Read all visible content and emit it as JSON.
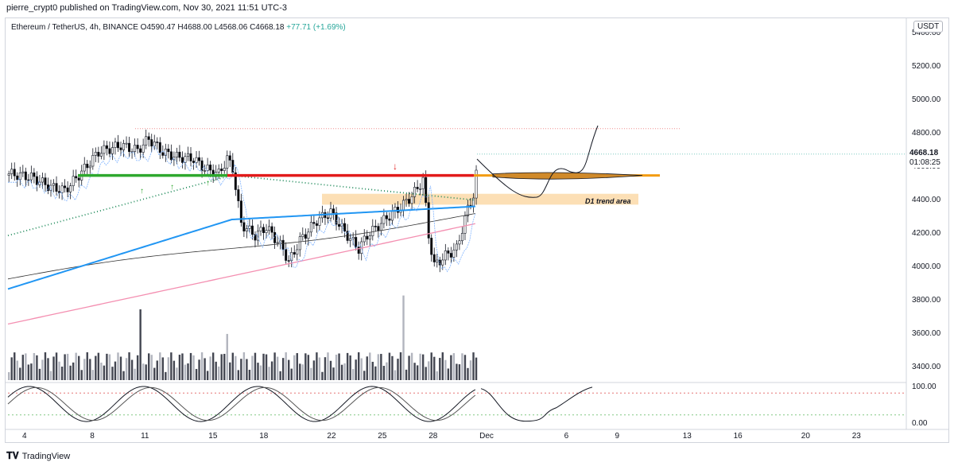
{
  "publisher": "pierre_crypt0 published on TradingView.com, Nov 30, 2021 11:51 UTC-3",
  "symbol": {
    "name": "Ethereum / TetherUS, 4h, BINANCE",
    "o_label": "O",
    "o": "4590.47",
    "h_label": "H",
    "h": "4688.00",
    "l_label": "L",
    "l": "4568.06",
    "c_label": "C",
    "c": "4668.18",
    "change": "+77.71 (+1.69%)"
  },
  "unit_badge": "USDT",
  "last_price": "4668.18",
  "countdown": "01:08:25",
  "zone_label": "D1 trend area",
  "brand": "TradingView",
  "colors": {
    "up": "#ffffff",
    "down": "#000000",
    "resistance": "#e21b1b",
    "support": "#2ea82e",
    "projection": "#f39c12",
    "ema_dotted": "#1e8a5a",
    "ma_blue": "#2196f3",
    "ma_pink": "#f48fb1",
    "ma_black": "#333333"
  },
  "chart_data": {
    "type": "line",
    "title": "",
    "xlabel": "",
    "ylabel": "",
    "y_tick_labels": [
      "5400.00",
      "5200.00",
      "5000.00",
      "4800.00",
      "4600.00",
      "4400.00",
      "4200.00",
      "4000.00",
      "3800.00",
      "3600.00",
      "3400.00"
    ],
    "x_tick_labels": [
      "4",
      "8",
      "11",
      "15",
      "18",
      "22",
      "25",
      "28",
      "Dec",
      "6",
      "9",
      "13",
      "16",
      "20",
      "23"
    ],
    "ylim": [
      3350,
      5450
    ],
    "oscillator_tick_labels": [
      "100.00",
      "0.00"
    ],
    "oscillator_ylim": [
      0,
      100
    ],
    "levels": [
      {
        "name": "prior high",
        "value": 4820,
        "style": "dotted"
      },
      {
        "name": "resistance",
        "value": 4540
      },
      {
        "name": "support",
        "value": 4540
      },
      {
        "name": "projection",
        "value": 4540
      }
    ],
    "zones": [
      {
        "label": "D1 trend area",
        "y_range": [
          4365,
          4430
        ]
      }
    ],
    "series": [
      {
        "values_hint": "ETH/USDT 4h candles, Dec 1 – Nov 30",
        "close_last": 4668.18
      }
    ],
    "projection_path_hint": "dip to ~4420 around Dec 3, recovery back above 4540 by Dec 5, then rally to ~4830 by Dec 7"
  }
}
